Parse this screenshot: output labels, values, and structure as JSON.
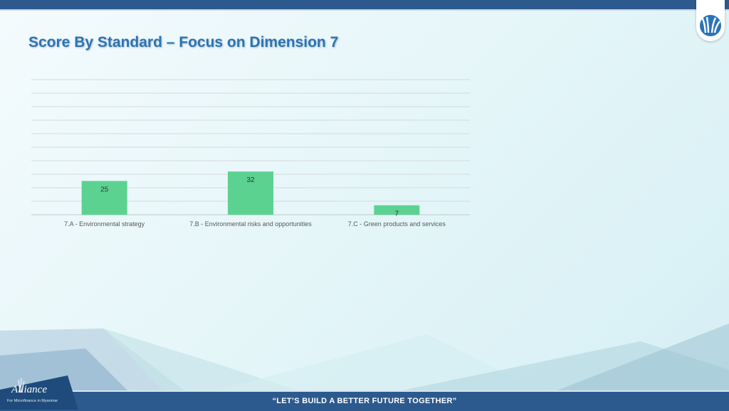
{
  "header": {
    "title": "Score By Standard – Focus on Dimension 7"
  },
  "footer": {
    "slogan": "“LET’S BUILD A BETTER FUTURE TOGETHER”",
    "brand_name": "Alliance",
    "brand_subtitle": "For Microfinance in Myanmar",
    "logo_icon": "leaf-logo-icon"
  },
  "colors": {
    "bar": "#5cd291",
    "bars_top_bottom": "#2c5a8e",
    "title": "#2a74b8"
  },
  "chart_data": {
    "type": "bar",
    "title": "",
    "categories": [
      "7.A - Environmental strategy",
      "7.B - Environmental risks and opportunities",
      "7.C - Green products and services"
    ],
    "values": [
      25,
      32,
      7
    ],
    "data_labels": [
      "25",
      "32",
      "7"
    ],
    "ylim": [
      0,
      100
    ],
    "grid": true,
    "legend": "none"
  }
}
